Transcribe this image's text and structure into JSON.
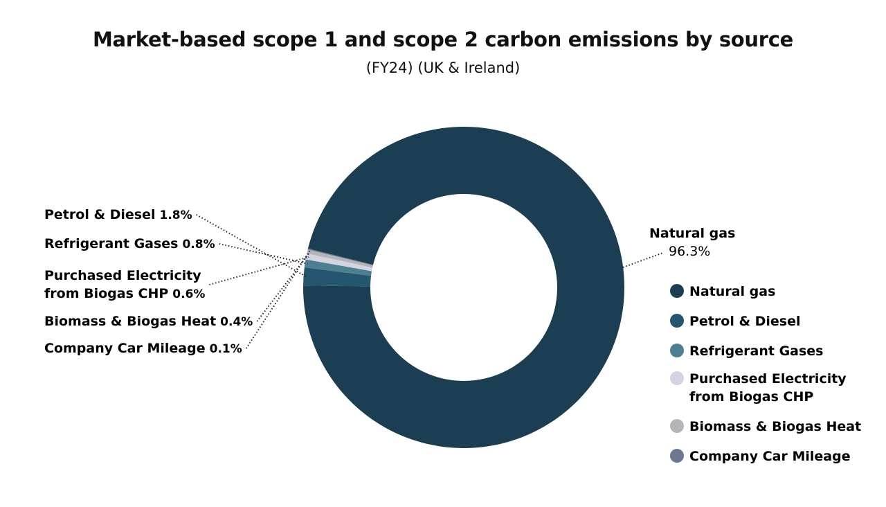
{
  "chart_data": {
    "type": "pie",
    "title": "Market-based scope 1 and scope 2 carbon emissions by source",
    "subtitle": "(FY24) (UK & Ireland)",
    "unit": "%",
    "slices": [
      {
        "name": "Natural gas",
        "label_lines": [
          "Natural gas"
        ],
        "value": 96.3,
        "value_label": "96.3%",
        "color": "#1b3e53"
      },
      {
        "name": "Petrol & Diesel",
        "label_lines": [
          "Petrol & Diesel"
        ],
        "value": 1.8,
        "value_label": "1.8%",
        "color": "#255670"
      },
      {
        "name": "Refrigerant Gases",
        "label_lines": [
          "Refrigerant Gases"
        ],
        "value": 0.8,
        "value_label": "0.8%",
        "color": "#4e7e91"
      },
      {
        "name": "Purchased Electricity from Biogas CHP",
        "label_lines": [
          "Purchased Electricity",
          "from Biogas CHP"
        ],
        "value": 0.6,
        "value_label": "0.6%",
        "color": "#d3d4df"
      },
      {
        "name": "Biomass & Biogas Heat",
        "label_lines": [
          "Biomass & Biogas Heat"
        ],
        "value": 0.4,
        "value_label": "0.4%",
        "color": "#b4b5b8"
      },
      {
        "name": "Company Car Mileage",
        "label_lines": [
          "Company Car Mileage"
        ],
        "value": 0.1,
        "value_label": "0.1%",
        "color": "#6e7690"
      }
    ],
    "legend_position": "right",
    "donut": true
  }
}
